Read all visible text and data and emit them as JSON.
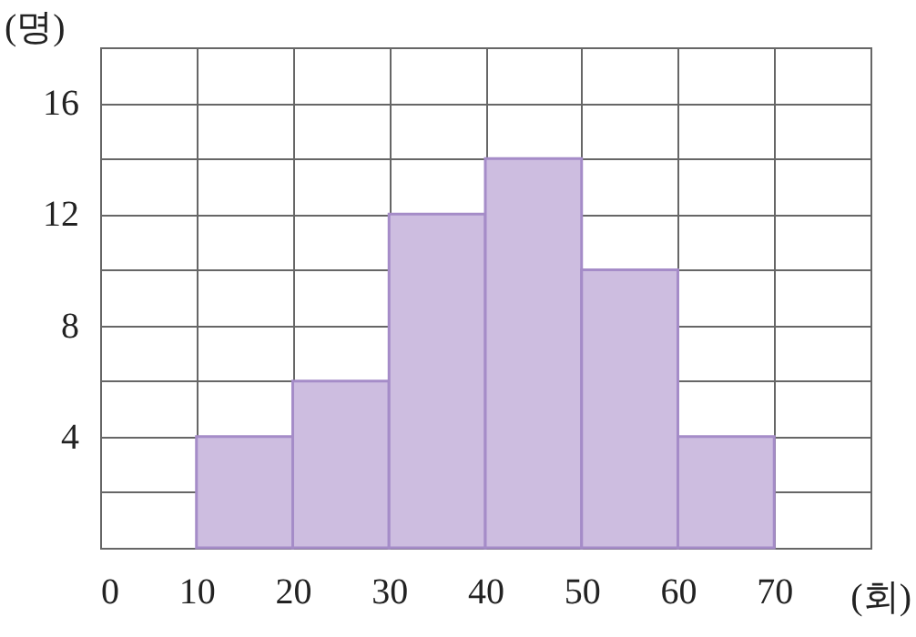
{
  "chart_data": {
    "type": "histogram",
    "xlabel": "(회)",
    "ylabel": "(명)",
    "bins": [
      10,
      20,
      30,
      40,
      50,
      60,
      70
    ],
    "values": [
      4,
      6,
      12,
      14,
      10,
      4
    ],
    "color": "#cdbde0",
    "xlim": [
      0,
      80
    ],
    "ylim": [
      0,
      18
    ],
    "xticks": [
      0,
      10,
      20,
      30,
      40,
      50,
      60,
      70,
      {
        "value": 80,
        "label": null
      }
    ],
    "yticks": [
      {
        "value": 0,
        "label": null
      },
      {
        "value": 2,
        "label": null
      },
      4,
      {
        "value": 6,
        "label": null
      },
      8,
      {
        "value": 10,
        "label": null
      },
      12,
      {
        "value": 14,
        "label": null
      },
      16,
      {
        "value": 18,
        "label": null
      }
    ],
    "grid": true
  }
}
